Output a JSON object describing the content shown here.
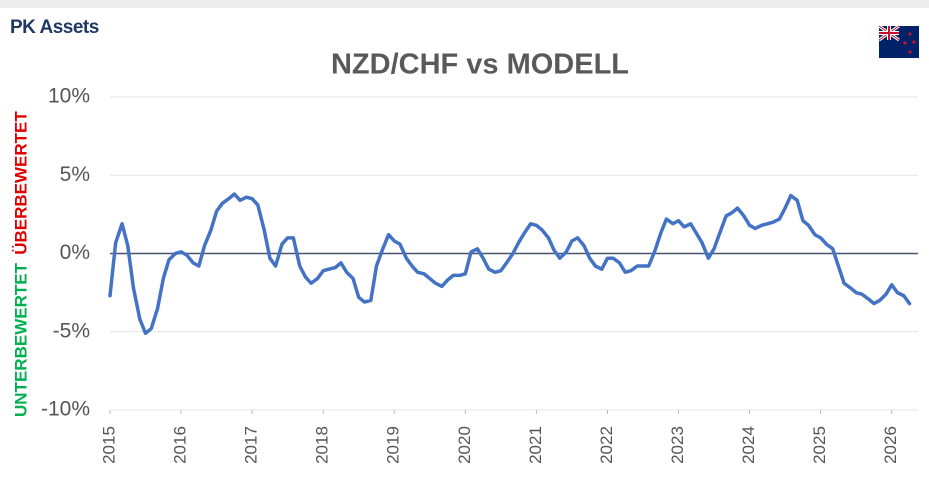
{
  "chart_data": {
    "type": "line",
    "brand": "PK Assets",
    "title": "NZD/CHF vs MODELL",
    "annotations": [
      "ÜBERBEWERTET",
      "UNTERBEWERTET"
    ],
    "xlim": [
      2015,
      2026.37
    ],
    "xticks": [
      2015,
      2016,
      2017,
      2018,
      2019,
      2020,
      2021,
      2022,
      2023,
      2024,
      2025,
      2026
    ],
    "ylim": [
      -10,
      10
    ],
    "yticks": [
      {
        "value": -10,
        "label": "-10%"
      },
      {
        "value": -5,
        "label": "-5%"
      },
      {
        "value": 0,
        "label": "0%"
      },
      {
        "value": 5,
        "label": "5%"
      },
      {
        "value": 10,
        "label": "10%"
      }
    ],
    "grid": true,
    "x": [
      2015,
      2015.08,
      2015.17,
      2015.25,
      2015.33,
      2015.42,
      2015.5,
      2015.58,
      2015.67,
      2015.75,
      2015.83,
      2015.92,
      2016,
      2016.08,
      2016.17,
      2016.25,
      2016.33,
      2016.42,
      2016.5,
      2016.58,
      2016.67,
      2016.75,
      2016.83,
      2016.92,
      2017,
      2017.08,
      2017.17,
      2017.25,
      2017.33,
      2017.42,
      2017.5,
      2017.58,
      2017.67,
      2017.75,
      2017.83,
      2017.92,
      2018,
      2018.08,
      2018.17,
      2018.25,
      2018.33,
      2018.42,
      2018.5,
      2018.58,
      2018.67,
      2018.75,
      2018.83,
      2018.92,
      2019,
      2019.08,
      2019.17,
      2019.25,
      2019.33,
      2019.42,
      2019.5,
      2019.58,
      2019.67,
      2019.75,
      2019.83,
      2019.92,
      2020,
      2020.08,
      2020.17,
      2020.25,
      2020.33,
      2020.42,
      2020.5,
      2020.58,
      2020.67,
      2020.75,
      2020.83,
      2020.92,
      2021,
      2021.08,
      2021.17,
      2021.25,
      2021.33,
      2021.42,
      2021.5,
      2021.58,
      2021.67,
      2021.75,
      2021.83,
      2021.92,
      2022,
      2022.08,
      2022.17,
      2022.25,
      2022.33,
      2022.42,
      2022.5,
      2022.58,
      2022.67,
      2022.75,
      2022.83,
      2022.92,
      2023,
      2023.08,
      2023.17,
      2023.25,
      2023.33,
      2023.42,
      2023.5,
      2023.58,
      2023.67,
      2023.75,
      2023.83,
      2023.92,
      2024,
      2024.08,
      2024.17,
      2024.25,
      2024.33,
      2024.42,
      2024.5,
      2024.58,
      2024.67,
      2024.75,
      2024.83,
      2024.92,
      2025,
      2025.08,
      2025.17,
      2025.25,
      2025.33,
      2025.42,
      2025.5,
      2025.58,
      2025.67,
      2025.75,
      2025.83,
      2025.92,
      2026,
      2026.08,
      2026.17,
      2026.25
    ],
    "series": [
      {
        "color": "#4472c4",
        "values": [
          -2.7,
          0.7,
          1.9,
          0.5,
          -2.2,
          -4.2,
          -5.1,
          -4.8,
          -3.5,
          -1.6,
          -0.4,
          0.0,
          0.1,
          -0.1,
          -0.6,
          -0.8,
          0.5,
          1.5,
          2.7,
          3.2,
          3.5,
          3.8,
          3.4,
          3.6,
          3.5,
          3.1,
          1.5,
          -0.3,
          -0.8,
          0.6,
          1.0,
          1.0,
          -0.8,
          -1.5,
          -1.9,
          -1.6,
          -1.1,
          -1.0,
          -0.9,
          -0.6,
          -1.2,
          -1.6,
          -2.8,
          -3.1,
          -3.0,
          -0.8,
          0.2,
          1.2,
          0.8,
          0.6,
          -0.3,
          -0.8,
          -1.2,
          -1.3,
          -1.6,
          -1.9,
          -2.1,
          -1.7,
          -1.4,
          -1.4,
          -1.3,
          0.1,
          0.3,
          -0.3,
          -1.0,
          -1.2,
          -1.1,
          -0.6,
          0.0,
          0.7,
          1.3,
          1.9,
          1.8,
          1.5,
          1.0,
          0.2,
          -0.3,
          0.1,
          0.8,
          1.0,
          0.5,
          -0.3,
          -0.8,
          -1.0,
          -0.3,
          -0.3,
          -0.6,
          -1.2,
          -1.1,
          -0.8,
          -0.8,
          -0.8,
          0.2,
          1.3,
          2.2,
          1.9,
          2.1,
          1.7,
          1.9,
          1.3,
          0.7,
          -0.3,
          0.3,
          1.3,
          2.4,
          2.6,
          2.9,
          2.4,
          1.8,
          1.6,
          1.8,
          1.9,
          2.0,
          2.2,
          2.9,
          3.7,
          3.4,
          2.1,
          1.8,
          1.2,
          1.0,
          0.6,
          0.3,
          -0.8,
          -1.9,
          -2.2,
          -2.5,
          -2.6,
          -2.9,
          -3.2,
          -3.0,
          -2.6,
          -2.0,
          -2.5,
          -2.7,
          -3.2
        ]
      }
    ]
  }
}
